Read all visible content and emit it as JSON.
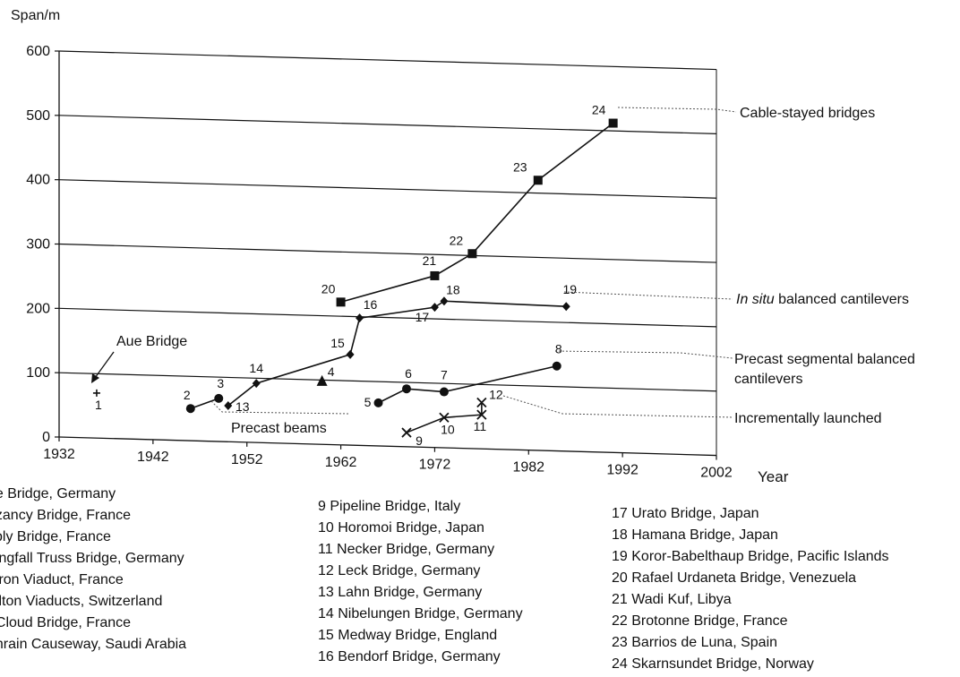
{
  "chart_data": {
    "type": "line",
    "ylabel": "Span/m",
    "xlabel": "Year",
    "xlim": [
      1932,
      2002
    ],
    "ylim": [
      0,
      600
    ],
    "x_ticks": [
      "1932",
      "1942",
      "1952",
      "1962",
      "1972",
      "1982",
      "1992",
      "2002"
    ],
    "y_ticks": [
      "0",
      "100",
      "200",
      "300",
      "400",
      "500",
      "600"
    ],
    "grid": "horizontal",
    "series": [
      {
        "name": "Cable-stayed bridges",
        "marker": "square",
        "connected": true,
        "points": [
          {
            "label": "20",
            "x": 1962,
            "y": 222
          },
          {
            "label": "21",
            "x": 1972,
            "y": 267
          },
          {
            "label": "22",
            "x": 1976,
            "y": 303
          },
          {
            "label": "23",
            "x": 1983,
            "y": 420
          },
          {
            "label": "24",
            "x": 1991,
            "y": 512
          }
        ]
      },
      {
        "name": "In situ balanced cantilevers",
        "marker": "diamond",
        "connected": true,
        "points": [
          {
            "label": "13",
            "x": 1950,
            "y": 56
          },
          {
            "label": "14",
            "x": 1953,
            "y": 92
          },
          {
            "label": "15",
            "x": 1963,
            "y": 141
          },
          {
            "label": "16",
            "x": 1964,
            "y": 198
          },
          {
            "label": "17",
            "x": 1972,
            "y": 218
          },
          {
            "label": "18",
            "x": 1973,
            "y": 228
          },
          {
            "label": "19",
            "x": 1986,
            "y": 225
          }
        ]
      },
      {
        "name": "Precast segmental balanced cantilevers",
        "marker": "circle",
        "connected": true,
        "points": [
          {
            "label": "5",
            "x": 1966,
            "y": 67
          },
          {
            "label": "6",
            "x": 1969,
            "y": 90
          },
          {
            "label": "7",
            "x": 1973,
            "y": 87
          },
          {
            "label": "8",
            "x": 1985,
            "y": 132
          }
        ]
      },
      {
        "name": "Precast beams",
        "marker": "circle",
        "connected": true,
        "points": [
          {
            "label": "2",
            "x": 1946,
            "y": 50
          },
          {
            "label": "3",
            "x": 1949,
            "y": 67
          }
        ]
      },
      {
        "name": "Incrementally launched",
        "marker": "x",
        "connected": true,
        "points": [
          {
            "label": "9",
            "x": 1969,
            "y": 22
          },
          {
            "label": "10",
            "x": 1973,
            "y": 47
          },
          {
            "label": "11",
            "x": 1977,
            "y": 53
          },
          {
            "label": "12",
            "x": 1977,
            "y": 72
          }
        ]
      },
      {
        "name": "Aue Bridge",
        "marker": "plus",
        "connected": false,
        "points": [
          {
            "label": "1",
            "x": 1936,
            "y": 70
          }
        ]
      },
      {
        "name": "",
        "marker": "triangle",
        "connected": false,
        "points": [
          {
            "label": "4",
            "x": 1960,
            "y": 98
          }
        ]
      }
    ],
    "annotations": {
      "cable_stayed": "Cable-stayed bridges",
      "in_situ_italic": "In situ",
      "in_situ_rest": " balanced cantilevers",
      "precast_seg_1": "Precast segmental balanced",
      "precast_seg_2": "cantilevers",
      "incremental": "Incrementally launched",
      "precast_beams": "Precast beams",
      "aue_bridge": "Aue Bridge"
    },
    "legend": {
      "col1": [
        "ue Bridge, Germany",
        "uzancy Bridge, France",
        "sbly Bridge, France",
        "langfall Truss Bridge, Germany",
        "leron Viaduct, France",
        "hilton Viaducts, Switzerland",
        "t Cloud Bridge, France",
        "ahrain Causeway, Saudi Arabia"
      ],
      "col2": [
        "9  Pipeline Bridge, Italy",
        "10  Horomoi Bridge, Japan",
        "11  Necker Bridge, Germany",
        "12  Leck Bridge, Germany",
        "13  Lahn Bridge, Germany",
        "14  Nibelungen Bridge, Germany",
        "15  Medway Bridge, England",
        "16  Bendorf Bridge, Germany"
      ],
      "col3": [
        "17  Urato Bridge, Japan",
        "18  Hamana Bridge, Japan",
        "19  Koror-Babelthaup Bridge, Pacific Islands",
        "20  Rafael Urdaneta Bridge, Venezuela",
        "21  Wadi Kuf, Libya",
        "22  Brotonne Bridge, France",
        "23  Barrios de Luna, Spain",
        "24  Skarnsundet Bridge, Norway"
      ]
    }
  }
}
